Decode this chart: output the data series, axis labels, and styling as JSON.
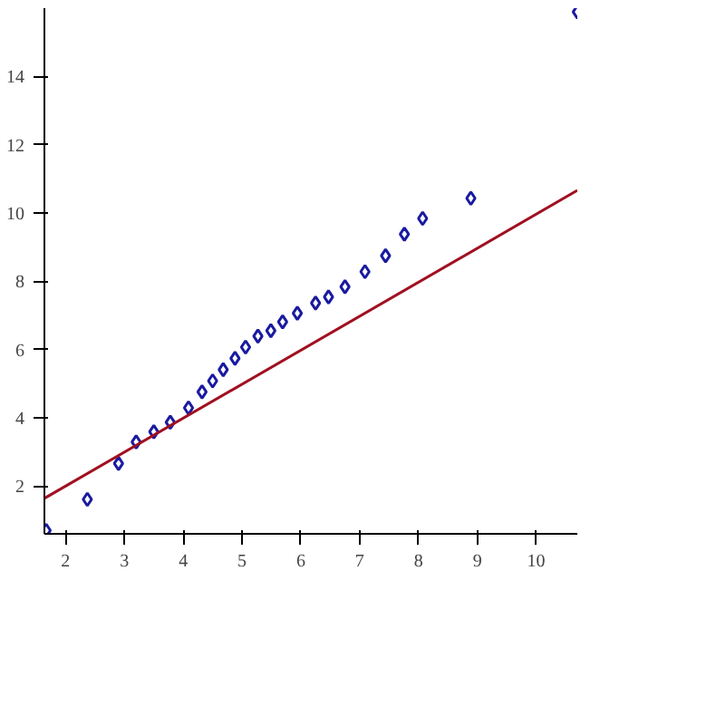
{
  "chart_data": {
    "type": "scatter",
    "x": [
      1.67,
      2.37,
      2.9,
      3.2,
      3.5,
      3.78,
      4.09,
      4.32,
      4.5,
      4.68,
      4.88,
      5.06,
      5.27,
      5.49,
      5.69,
      5.94,
      6.25,
      6.47,
      6.75,
      7.09,
      7.44,
      7.76,
      8.07,
      8.89,
      10.7
    ],
    "series": [
      {
        "color": "#1a1aa0",
        "marker": "diamond",
        "values": [
          0.7,
          1.61,
          2.66,
          3.29,
          3.59,
          3.87,
          4.29,
          4.76,
          5.08,
          5.41,
          5.74,
          6.07,
          6.39,
          6.55,
          6.81,
          7.06,
          7.36,
          7.54,
          7.84,
          8.28,
          8.75,
          9.38,
          9.84,
          10.43,
          15.89
        ]
      },
      {
        "type": "line",
        "color": "#a01020",
        "marker": "none",
        "x": [
          1.64,
          10.7
        ],
        "values": [
          1.64,
          10.66
        ]
      }
    ],
    "xlim": [
      1.64,
      10.7
    ],
    "ylim": [
      0.6,
      16
    ],
    "xticks": [
      2,
      3,
      4,
      5,
      6,
      7,
      8,
      9,
      10
    ],
    "yticks": [
      2,
      4,
      6,
      8,
      10,
      12,
      14
    ],
    "grid": false
  }
}
